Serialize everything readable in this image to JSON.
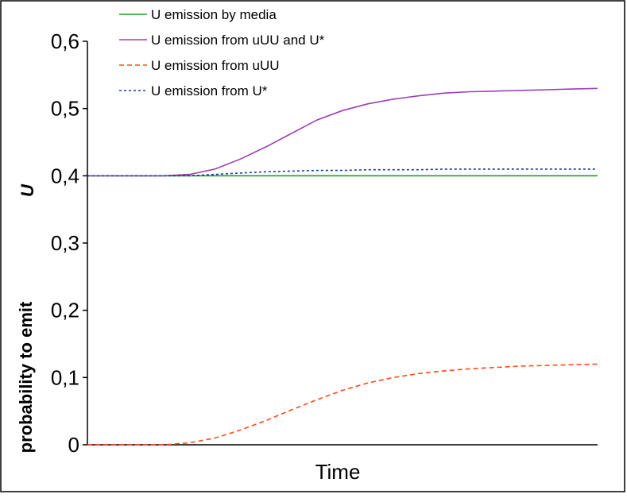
{
  "chart_data": {
    "type": "line",
    "title": "",
    "xlabel": "Time",
    "ylabel": "probability to emit",
    "ylabel_var": "U",
    "ylim": [
      0,
      0.6
    ],
    "yticks": [
      0,
      0.1,
      0.2,
      0.3,
      0.4,
      0.5,
      0.6
    ],
    "ytick_labels": [
      "0",
      "0,1",
      "0,2",
      "0,3",
      "0,4",
      "0,5",
      "0,6"
    ],
    "xlim": [
      0,
      100
    ],
    "grid": false,
    "legend_position": "top-center",
    "x": [
      0,
      5,
      10,
      15,
      20,
      25,
      30,
      35,
      40,
      45,
      50,
      55,
      60,
      65,
      70,
      75,
      80,
      85,
      90,
      95,
      100
    ],
    "series": [
      {
        "name": "U emission by media",
        "color": "#1aa31a",
        "dash": "solid",
        "values": [
          0.4,
          0.4,
          0.4,
          0.4,
          0.4,
          0.4,
          0.4,
          0.4,
          0.4,
          0.4,
          0.4,
          0.4,
          0.4,
          0.4,
          0.4,
          0.4,
          0.4,
          0.4,
          0.4,
          0.4,
          0.4
        ]
      },
      {
        "name": "U emission from uUU and U*",
        "color": "#9b3fb5",
        "dash": "solid",
        "values": [
          0.4,
          0.4,
          0.4,
          0.4,
          0.402,
          0.41,
          0.425,
          0.443,
          0.463,
          0.483,
          0.497,
          0.507,
          0.514,
          0.519,
          0.523,
          0.525,
          0.526,
          0.527,
          0.528,
          0.529,
          0.53
        ]
      },
      {
        "name": "U emission from uUU",
        "color": "#ff4a1a",
        "dash": "dashed",
        "values": [
          0,
          0,
          0,
          0,
          0.003,
          0.01,
          0.022,
          0.036,
          0.052,
          0.067,
          0.081,
          0.092,
          0.1,
          0.106,
          0.11,
          0.113,
          0.115,
          0.117,
          0.118,
          0.119,
          0.12
        ]
      },
      {
        "name": "U emission from U*",
        "color": "#1a3aa8",
        "dash": "dotted",
        "values": [
          0.4,
          0.4,
          0.4,
          0.4,
          0.4,
          0.402,
          0.404,
          0.406,
          0.407,
          0.408,
          0.408,
          0.409,
          0.409,
          0.409,
          0.41,
          0.41,
          0.41,
          0.41,
          0.41,
          0.41,
          0.41
        ]
      }
    ]
  }
}
